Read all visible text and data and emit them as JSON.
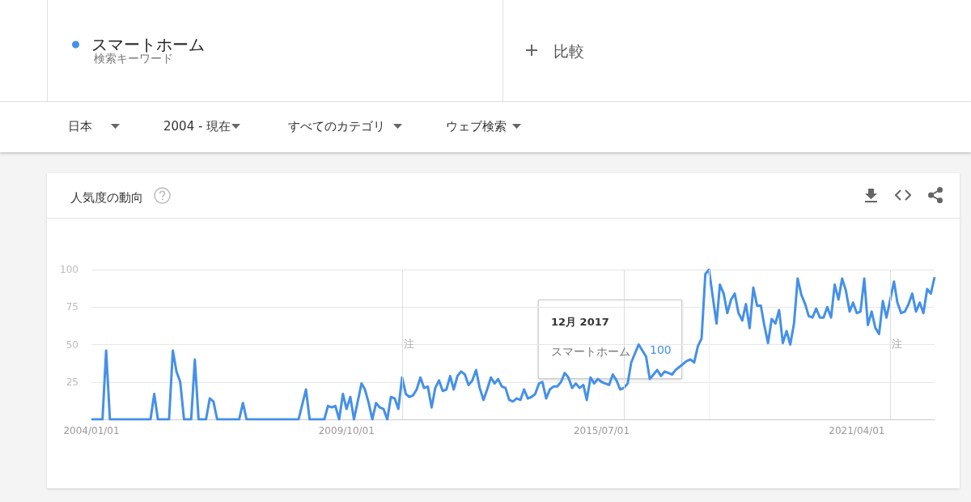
{
  "chart_data": {
    "type": "line",
    "title": "人気度の動向",
    "x": [
      "2004-01",
      "2004-04",
      "2004-05",
      "2004-06",
      "2005-05",
      "2005-06",
      "2005-07",
      "2005-10",
      "2005-11",
      "2005-12",
      "2006-01",
      "2006-02",
      "2006-04",
      "2006-05",
      "2006-06",
      "2006-08",
      "2006-09",
      "2006-10",
      "2006-11",
      "2007-05",
      "2007-06",
      "2007-07",
      "2008-09",
      "2008-11",
      "2008-12",
      "2009-04",
      "2009-05",
      "2009-06",
      "2009-07",
      "2009-08",
      "2009-09",
      "2009-10",
      "2009-11",
      "2009-12",
      "2010-02",
      "2010-03",
      "2010-04",
      "2010-05",
      "2010-06",
      "2010-07",
      "2010-08",
      "2010-09",
      "2010-10",
      "2010-11",
      "2010-12",
      "2011-01",
      "2011-02",
      "2011-03",
      "2011-04",
      "2011-05",
      "2011-06",
      "2011-07",
      "2011-08",
      "2011-09",
      "2011-10",
      "2011-11",
      "2011-12",
      "2012-01",
      "2012-02",
      "2012-03",
      "2012-04",
      "2012-05",
      "2012-06",
      "2012-07",
      "2012-08",
      "2012-09",
      "2012-10",
      "2012-11",
      "2012-12",
      "2013-01",
      "2013-02",
      "2013-03",
      "2013-04",
      "2013-05",
      "2013-06",
      "2013-07",
      "2013-08",
      "2013-09",
      "2013-10",
      "2013-11",
      "2013-12",
      "2014-01",
      "2014-02",
      "2014-03",
      "2014-04",
      "2014-05",
      "2014-06",
      "2014-07",
      "2014-08",
      "2014-09",
      "2014-10",
      "2014-11",
      "2014-12",
      "2015-01",
      "2015-02",
      "2015-03",
      "2015-04",
      "2015-05",
      "2015-06",
      "2015-07",
      "2015-08",
      "2015-09",
      "2015-10",
      "2015-11",
      "2015-12",
      "2016-01",
      "2016-02",
      "2016-03",
      "2016-05",
      "2016-07",
      "2016-08",
      "2016-09",
      "2016-10",
      "2016-11",
      "2016-12",
      "2017-01",
      "2017-02",
      "2017-03",
      "2017-04",
      "2017-06",
      "2017-07",
      "2017-08",
      "2017-09",
      "2017-10",
      "2017-11",
      "2017-12",
      "2018-01",
      "2018-02",
      "2018-03",
      "2018-04",
      "2018-05",
      "2018-06",
      "2018-07",
      "2018-08",
      "2018-09",
      "2018-10",
      "2018-11",
      "2018-12",
      "2019-01",
      "2019-02",
      "2019-03",
      "2019-04",
      "2019-05",
      "2019-06",
      "2019-07",
      "2019-08",
      "2019-09",
      "2019-10",
      "2019-11",
      "2019-12",
      "2020-01",
      "2020-02",
      "2020-03",
      "2020-04",
      "2020-05",
      "2020-06",
      "2020-07",
      "2020-08",
      "2020-09",
      "2020-10",
      "2020-11",
      "2020-12",
      "2021-01",
      "2021-02",
      "2021-03",
      "2021-04",
      "2021-05",
      "2021-06",
      "2021-07",
      "2021-08",
      "2021-09",
      "2021-10",
      "2021-11",
      "2021-12",
      "2022-01",
      "2022-02",
      "2022-03",
      "2022-04",
      "2022-05",
      "2022-06",
      "2022-07",
      "2022-08",
      "2022-09",
      "2022-10",
      "2022-11",
      "2022-12",
      "2023-01"
    ],
    "series": [
      {
        "name": "スマートホーム",
        "color": "#4590e8",
        "values": [
          0,
          0,
          46,
          0,
          0,
          17,
          0,
          0,
          46,
          32,
          25,
          0,
          0,
          40,
          0,
          0,
          14,
          12,
          0,
          0,
          11,
          0,
          0,
          20,
          0,
          0,
          9,
          8,
          9,
          0,
          17,
          7,
          15,
          0,
          24,
          20,
          11,
          0,
          11,
          8,
          7,
          0,
          15,
          14,
          7,
          28,
          17,
          15,
          16,
          20,
          28,
          21,
          22,
          8,
          21,
          26,
          19,
          20,
          29,
          20,
          29,
          32,
          30,
          23,
          26,
          33,
          21,
          13,
          20,
          28,
          24,
          27,
          22,
          21,
          13,
          12,
          14,
          13,
          20,
          14,
          15,
          17,
          24,
          25,
          14,
          20,
          22,
          22,
          25,
          31,
          28,
          21,
          24,
          21,
          23,
          13,
          28,
          24,
          27,
          25,
          24,
          23,
          30,
          26,
          20,
          21,
          24,
          38,
          50,
          42,
          27,
          30,
          33,
          29,
          32,
          31,
          30,
          33,
          35,
          39,
          40,
          38,
          49,
          54,
          97,
          100,
          82,
          64,
          90,
          84,
          71,
          80,
          84,
          71,
          66,
          77,
          61,
          88,
          76,
          76,
          63,
          51,
          67,
          64,
          73,
          51,
          59,
          50,
          64,
          94,
          83,
          77,
          69,
          68,
          74,
          68,
          68,
          75,
          68,
          90,
          80,
          94,
          86,
          72,
          78,
          71,
          72,
          94,
          63,
          72,
          61,
          57,
          79,
          68,
          80,
          92,
          78,
          71,
          72,
          77,
          84,
          72,
          78,
          71,
          87,
          84,
          95
        ]
      }
    ],
    "xlim": [
      "2004-01",
      "2023-01"
    ],
    "xticks": [
      {
        "value": "2004-01-01",
        "label": "2004/01/01"
      },
      {
        "value": "2009-10-01",
        "label": "2009/10/01"
      },
      {
        "value": "2015-07-01",
        "label": "2015/07/01"
      },
      {
        "value": "2021-04-01",
        "label": "2021/04/01"
      }
    ],
    "ylim": [
      0,
      100
    ],
    "yticks": [
      25,
      50,
      75,
      100
    ],
    "grid": "y",
    "legend": "top left",
    "ref_lines": [
      {
        "axis": "x",
        "value": "2011-01",
        "label": "注",
        "color": "#dddddd"
      },
      {
        "axis": "x",
        "value": "2016-01",
        "color": "#dddddd"
      },
      {
        "axis": "x",
        "value": "2022-01",
        "label": "注",
        "color": "#dddddd"
      },
      {
        "axis": "x",
        "value": "2017-12",
        "color": "#f0f0f0"
      }
    ],
    "annotations": [
      "検索キーワード",
      "比較",
      "日本",
      "2004 - 現在",
      "すべてのカテゴリ",
      "ウェブ検索",
      "12月 2017",
      "100"
    ]
  }
}
